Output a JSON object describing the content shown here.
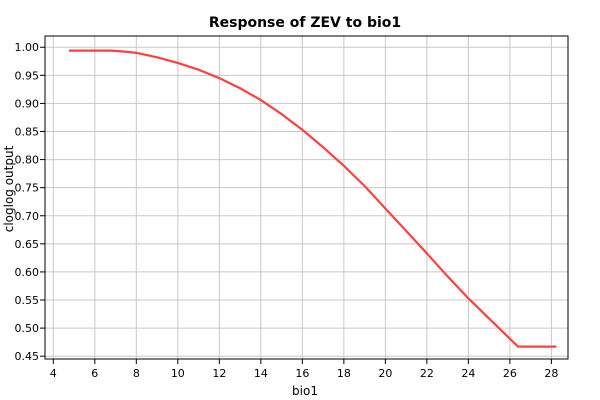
{
  "chart_data": {
    "type": "line",
    "title": "Response of ZEV to bio1",
    "xlabel": "bio1",
    "ylabel": "cloglog output",
    "xlim": [
      3.6,
      28.8
    ],
    "ylim": [
      0.445,
      1.02
    ],
    "xticks": [
      4,
      6,
      8,
      10,
      12,
      14,
      16,
      18,
      20,
      22,
      24,
      26,
      28
    ],
    "yticks": [
      0.45,
      0.5,
      0.55,
      0.6,
      0.65,
      0.7,
      0.75,
      0.8,
      0.85,
      0.9,
      0.95,
      1.0
    ],
    "xtick_labels": [
      "4",
      "6",
      "8",
      "10",
      "12",
      "14",
      "16",
      "18",
      "20",
      "22",
      "24",
      "26",
      "28"
    ],
    "ytick_labels": [
      "0.45",
      "0.50",
      "0.55",
      "0.60",
      "0.65",
      "0.70",
      "0.75",
      "0.80",
      "0.85",
      "0.90",
      "0.95",
      "1.00"
    ],
    "grid": true,
    "legend": "none",
    "series": [
      {
        "color": "#ff4040",
        "x": [
          4.8,
          6.8,
          7.5,
          8,
          9,
          10,
          11,
          12,
          13,
          14,
          15,
          16,
          17,
          18,
          19,
          20,
          21,
          22,
          23,
          24,
          25,
          26,
          26.4,
          28.2
        ],
        "y": [
          0.994,
          0.994,
          0.992,
          0.99,
          0.982,
          0.972,
          0.96,
          0.945,
          0.927,
          0.906,
          0.881,
          0.853,
          0.822,
          0.789,
          0.753,
          0.713,
          0.673,
          0.633,
          0.592,
          0.553,
          0.517,
          0.481,
          0.467,
          0.467
        ]
      }
    ]
  }
}
